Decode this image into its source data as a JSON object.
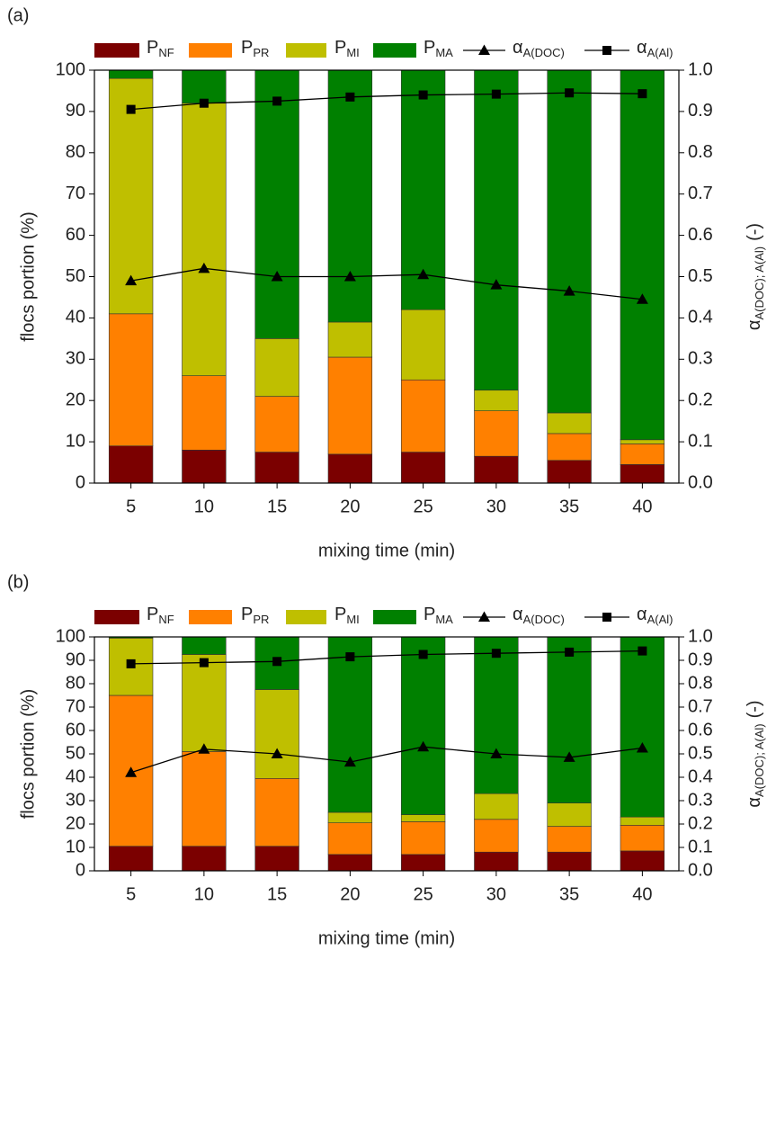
{
  "chart_data": [
    {
      "type": "bar",
      "stacked": true,
      "panel_label": "(a)",
      "xlabel": "mixing time (min)",
      "ylabel": "flocs portion (%)",
      "y2label": {
        "text": "α",
        "sub": "A(DOC); A(Al)",
        "suffix": "(-)"
      },
      "categories": [
        "5",
        "10",
        "15",
        "20",
        "25",
        "30",
        "35",
        "40"
      ],
      "ylim": [
        0,
        100
      ],
      "yticks": [
        0,
        10,
        20,
        30,
        40,
        50,
        60,
        70,
        80,
        90,
        100
      ],
      "y2lim": [
        0,
        1
      ],
      "y2ticks": [
        {
          "value": 0,
          "label": "0.0"
        },
        0.1,
        0.2,
        0.3,
        0.4,
        0.5,
        0.6,
        0.7,
        0.8,
        0.9,
        {
          "value": 1,
          "label": "1.0"
        }
      ],
      "series": [
        {
          "name": "P",
          "name_sub": "NF",
          "color": "#7b0000",
          "values": [
            9,
            8,
            7.5,
            7,
            7.5,
            6.5,
            5.5,
            4.5
          ]
        },
        {
          "name": "P",
          "name_sub": "PR",
          "color": "#ff8000",
          "values": [
            32,
            18,
            13.5,
            23.5,
            17.5,
            11,
            6.5,
            5
          ]
        },
        {
          "name": "P",
          "name_sub": "MI",
          "color": "#bfbf00",
          "values": [
            57,
            66,
            14,
            8.5,
            17,
            5,
            5,
            1
          ]
        },
        {
          "name": "P",
          "name_sub": "MA",
          "color": "#008000",
          "values": [
            2,
            8,
            65,
            61,
            58,
            77.5,
            83,
            89.5
          ]
        },
        {
          "name": "α",
          "name_sub": "A(DOC)",
          "type": "line",
          "axis": "y2",
          "marker": "triangle",
          "color": "#000000",
          "values": [
            0.49,
            0.52,
            0.5,
            0.5,
            0.505,
            0.48,
            0.465,
            0.445
          ]
        },
        {
          "name": "α",
          "name_sub": "A(Al)",
          "type": "line",
          "axis": "y2",
          "marker": "square",
          "color": "#000000",
          "values": [
            0.905,
            0.92,
            0.925,
            0.935,
            0.94,
            0.942,
            0.945,
            0.943
          ]
        }
      ]
    },
    {
      "type": "bar",
      "stacked": true,
      "panel_label": "(b)",
      "xlabel": "mixing time (min)",
      "ylabel": "flocs portion (%)",
      "y2label": {
        "text": "α",
        "sub": "A(DOC); A(Al)",
        "suffix": "(-)"
      },
      "categories": [
        "5",
        "10",
        "15",
        "20",
        "25",
        "30",
        "35",
        "40"
      ],
      "ylim": [
        0,
        100
      ],
      "yticks": [
        0,
        10,
        20,
        30,
        40,
        50,
        60,
        70,
        80,
        90,
        100
      ],
      "y2lim": [
        0,
        1
      ],
      "y2ticks": [
        {
          "value": 0,
          "label": "0.0"
        },
        0.1,
        0.2,
        0.3,
        0.4,
        0.5,
        0.6,
        0.7,
        0.8,
        0.9,
        {
          "value": 1,
          "label": "1.0"
        }
      ],
      "series": [
        {
          "name": "P",
          "name_sub": "NF",
          "color": "#7b0000",
          "values": [
            10.5,
            10.5,
            10.5,
            7,
            7,
            8,
            8,
            8.5
          ]
        },
        {
          "name": "P",
          "name_sub": "PR",
          "color": "#ff8000",
          "values": [
            64.5,
            40.5,
            29,
            13.5,
            14,
            14,
            11,
            11
          ]
        },
        {
          "name": "P",
          "name_sub": "MI",
          "color": "#bfbf00",
          "values": [
            24.5,
            41.5,
            38,
            4.5,
            3,
            11,
            10,
            3.5
          ]
        },
        {
          "name": "P",
          "name_sub": "MA",
          "color": "#008000",
          "values": [
            0.5,
            7.5,
            22.5,
            75,
            76,
            67,
            71,
            77
          ]
        },
        {
          "name": "α",
          "name_sub": "A(DOC)",
          "type": "line",
          "axis": "y2",
          "marker": "triangle",
          "color": "#000000",
          "values": [
            0.42,
            0.52,
            0.5,
            0.465,
            0.53,
            0.5,
            0.485,
            0.525
          ]
        },
        {
          "name": "α",
          "name_sub": "A(Al)",
          "type": "line",
          "axis": "y2",
          "marker": "square",
          "color": "#000000",
          "values": [
            0.885,
            0.89,
            0.895,
            0.915,
            0.925,
            0.93,
            0.935,
            0.94
          ]
        }
      ]
    }
  ]
}
